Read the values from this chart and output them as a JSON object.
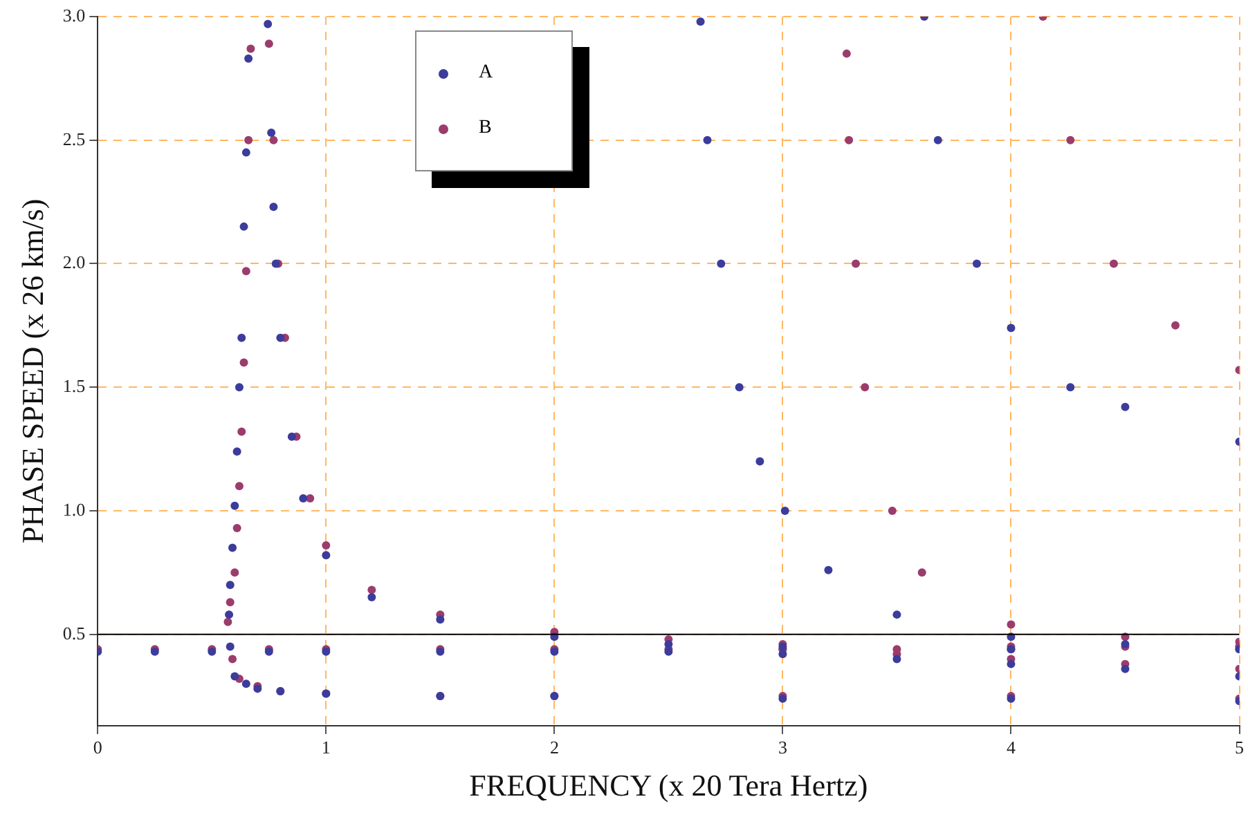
{
  "chart_data": {
    "type": "scatter",
    "xlabel": "FREQUENCY (x 20 Tera Hertz)",
    "ylabel": "PHASE SPEED (x 26 km/s)",
    "xlim": [
      0,
      5
    ],
    "xticks": [
      0,
      1,
      2,
      3,
      4,
      5
    ],
    "ylim": [
      0.13,
      3.0
    ],
    "yticks": [
      {
        "value": 0.5,
        "label": "0.5"
      },
      {
        "value": 1,
        "label": "1.0"
      },
      {
        "value": 1.5,
        "label": "1.5"
      },
      {
        "value": 2,
        "label": "2.0"
      },
      {
        "value": 2.5,
        "label": "2.5"
      },
      {
        "value": 3,
        "label": "3.0"
      }
    ],
    "grid": true,
    "legend": "top left",
    "marker": "circle",
    "ref_lines": [
      {
        "axis": "y",
        "value": 0.5,
        "label": null,
        "color": "#000000"
      }
    ],
    "series": [
      {
        "name": "A",
        "color": "#3c3c9c",
        "x": [
          0,
          0.25,
          0.5,
          0.75,
          1,
          1.5,
          2,
          2.5,
          3,
          3.5,
          4,
          4.5,
          5,
          0.58,
          0.6,
          0.65,
          0.7,
          0.8,
          1,
          1.5,
          2,
          3,
          4,
          5,
          0.575,
          0.58,
          0.59,
          0.6,
          0.61,
          0.62,
          0.63,
          0.64,
          0.65,
          0.66,
          0.745,
          0.76,
          0.77,
          0.78,
          0.8,
          0.85,
          0.9,
          1,
          1.2,
          1.5,
          2,
          2.5,
          3,
          4,
          5,
          2.64,
          2.67,
          2.73,
          2.81,
          2.9,
          3.01,
          3.2,
          3.5,
          4,
          4.5,
          5,
          3.62,
          3.68,
          3.85,
          4,
          4.26,
          4.5,
          5
        ],
        "values": [
          0.43,
          0.43,
          0.43,
          0.43,
          0.43,
          0.43,
          0.43,
          0.43,
          0.42,
          0.4,
          0.38,
          0.36,
          0.33,
          0.45,
          0.33,
          0.3,
          0.28,
          0.27,
          0.26,
          0.25,
          0.25,
          0.24,
          0.24,
          0.23,
          0.58,
          0.7,
          0.85,
          1.02,
          1.24,
          1.5,
          1.7,
          2.15,
          2.45,
          2.83,
          2.97,
          2.53,
          2.23,
          2.0,
          1.7,
          1.3,
          1.05,
          0.82,
          0.65,
          0.56,
          0.49,
          0.46,
          0.45,
          0.44,
          0.44,
          2.98,
          2.5,
          2.0,
          1.5,
          1.2,
          1.0,
          0.76,
          0.58,
          0.49,
          0.46,
          0.44,
          3.0,
          2.5,
          2.0,
          1.74,
          1.5,
          1.42,
          1.28
        ]
      },
      {
        "name": "B",
        "color": "#9c3c6c",
        "x": [
          0,
          0.25,
          0.5,
          0.75,
          1,
          1.5,
          2,
          2.5,
          3,
          3.5,
          4,
          4.5,
          5,
          3,
          3.5,
          4,
          4.5,
          5,
          0.59,
          0.62,
          0.7,
          0.8,
          1,
          1.5,
          2,
          3,
          4,
          5,
          0.57,
          0.58,
          0.6,
          0.61,
          0.62,
          0.63,
          0.64,
          0.65,
          0.66,
          0.67,
          0.75,
          0.77,
          0.79,
          0.82,
          0.87,
          0.93,
          1,
          1.2,
          1.5,
          2,
          2.5,
          3,
          4,
          5,
          3.28,
          3.29,
          3.32,
          3.36,
          3.48,
          3.61,
          4,
          4.5,
          5,
          4.14,
          4.26,
          4.45,
          4.72,
          5
        ],
        "values": [
          0.44,
          0.44,
          0.44,
          0.44,
          0.44,
          0.44,
          0.44,
          0.44,
          0.44,
          0.44,
          0.44,
          0.45,
          0.45,
          0.44,
          0.42,
          0.4,
          0.38,
          0.36,
          0.4,
          0.32,
          0.29,
          0.27,
          0.26,
          0.25,
          0.25,
          0.25,
          0.25,
          0.24,
          0.55,
          0.63,
          0.75,
          0.93,
          1.1,
          1.32,
          1.6,
          1.97,
          2.5,
          2.87,
          2.89,
          2.5,
          2.0,
          1.7,
          1.3,
          1.05,
          0.86,
          0.68,
          0.58,
          0.51,
          0.48,
          0.46,
          0.45,
          0.45,
          2.85,
          2.5,
          2.0,
          1.5,
          1.0,
          0.75,
          0.54,
          0.49,
          0.47,
          3.0,
          2.5,
          2.0,
          1.75,
          1.57
        ]
      }
    ]
  }
}
